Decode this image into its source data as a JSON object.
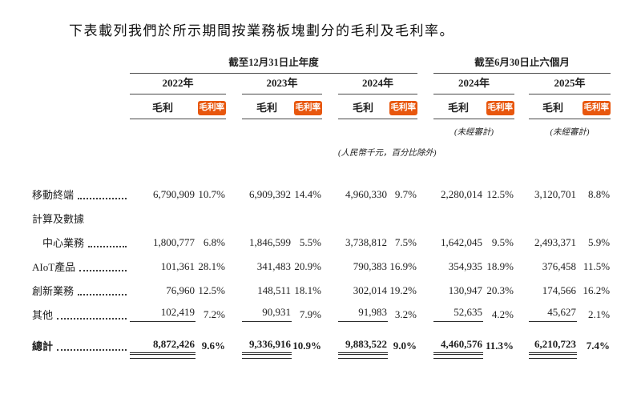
{
  "title": "下表載列我們於所示期間按業務板塊劃分的毛利及毛利率。",
  "colors": {
    "accent": "#e8570e",
    "text": "#1f1f1f"
  },
  "table": {
    "group_headers": [
      {
        "label": "截至12月31日止年度"
      },
      {
        "label": "截至6月30日止六個月"
      }
    ],
    "years": [
      "2022年",
      "2023年",
      "2024年",
      "2024年",
      "2025年"
    ],
    "col_headers": {
      "profit": "毛利",
      "margin": "毛利率"
    },
    "unaudited_note": "(未經審計)",
    "units_note": "(人民幣千元，百分比除外)",
    "rows": [
      {
        "label": "移動終端",
        "leader": true,
        "indent": false,
        "underline": false,
        "values": [
          [
            "6,790,909",
            "10.7%"
          ],
          [
            "6,909,392",
            "14.4%"
          ],
          [
            "4,960,330",
            "9.7%"
          ],
          [
            "2,280,014",
            "12.5%"
          ],
          [
            "3,120,701",
            "8.8%"
          ]
        ]
      },
      {
        "label": "計算及數據",
        "leader": false,
        "indent": false,
        "underline": false,
        "values": null
      },
      {
        "label": "中心業務",
        "leader": true,
        "indent": true,
        "underline": false,
        "values": [
          [
            "1,800,777",
            "6.8%"
          ],
          [
            "1,846,599",
            "5.5%"
          ],
          [
            "3,738,812",
            "7.5%"
          ],
          [
            "1,642,045",
            "9.5%"
          ],
          [
            "2,493,371",
            "5.9%"
          ]
        ]
      },
      {
        "label": "AIoT產品",
        "leader": true,
        "indent": false,
        "underline": false,
        "values": [
          [
            "101,361",
            "28.1%"
          ],
          [
            "341,483",
            "20.9%"
          ],
          [
            "790,383",
            "16.9%"
          ],
          [
            "354,935",
            "18.9%"
          ],
          [
            "376,458",
            "11.5%"
          ]
        ]
      },
      {
        "label": "創新業務",
        "leader": true,
        "indent": false,
        "underline": false,
        "values": [
          [
            "76,960",
            "12.5%"
          ],
          [
            "148,511",
            "18.1%"
          ],
          [
            "302,014",
            "19.2%"
          ],
          [
            "130,947",
            "20.3%"
          ],
          [
            "174,566",
            "16.2%"
          ]
        ]
      },
      {
        "label": "其他",
        "leader": true,
        "indent": false,
        "underline": true,
        "values": [
          [
            "102,419",
            "7.2%"
          ],
          [
            "90,931",
            "7.9%"
          ],
          [
            "91,983",
            "3.2%"
          ],
          [
            "52,635",
            "4.2%"
          ],
          [
            "45,627",
            "2.1%"
          ]
        ]
      }
    ],
    "total_row": {
      "label": "總計",
      "leader": true,
      "values": [
        [
          "8,872,426",
          "9.6%"
        ],
        [
          "9,336,916",
          "10.9%"
        ],
        [
          "9,883,522",
          "9.0%"
        ],
        [
          "4,460,576",
          "11.3%"
        ],
        [
          "6,210,723",
          "7.4%"
        ]
      ]
    }
  }
}
